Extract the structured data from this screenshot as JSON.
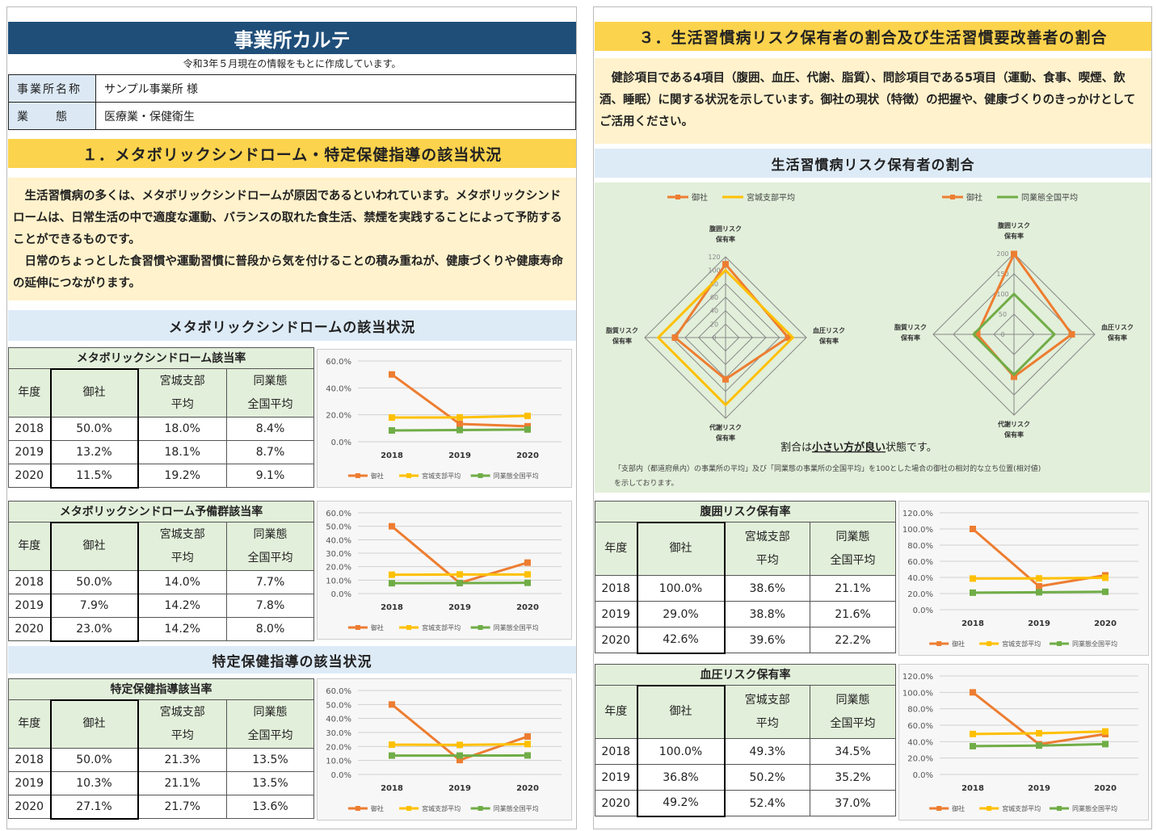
{
  "header": {
    "title": "事業所カルテ",
    "note": "令和3年５月現在の情報をもとに作成しています。",
    "rows": [
      {
        "key": "事業所名称",
        "value": "サンプル事業所 様"
      },
      {
        "key": "業　　態",
        "value": "医療業・保健衛生"
      }
    ]
  },
  "section1": {
    "title": "１．メタボリックシンドローム・特定保健指導の該当状況",
    "intro": "　生活習慣病の多くは、メタボリックシンドロームが原因であるといわれています。メタボリックシンドロームは、日常生活の中で適度な運動、バランスの取れた食生活、禁煙を実践することによって予防することができるものです。\n　日常のちょっとした食習慣や運動習慣に普段から気を付けることの積み重ねが、健康づくりや健康寿命の延伸につながります。",
    "sub1": "メタボリックシンドロームの該当状況",
    "sub2": "特定保健指導の該当状況"
  },
  "section3": {
    "title": "３．生活習慣病リスク保有者の割合及び生活習慣要改善者の割合",
    "intro": "　健診項目である4項目（腹囲、血圧、代謝、脂質）、問診項目である5項目（運動、食事、喫煙、飲酒、睡眠）に関する状況を示しています。御社の現状（特徴）の把握や、健康づくりのきっかけとしてご活用ください。",
    "sub1": "生活習慣病リスク保有者の割合",
    "radar_note_pre": "割合は",
    "radar_note_em": "小さい方が良い",
    "radar_note_post": "状態です。",
    "radar_footnote1": "「支部内（都道府県内）の事業所の平均」及び「同業態の事業所の全国平均」を100とした場合の御社の相対的な立ち位置(相対値)",
    "radar_footnote2": "を示しております。"
  },
  "table_labels": {
    "year": "年度",
    "ours": "御社",
    "branch1": "宮城支部",
    "branch2": "平均",
    "industry1": "同業態",
    "industry2": "全国平均"
  },
  "tables": [
    {
      "caption": "メタボリックシンドローム該当率",
      "rows": [
        [
          "2018",
          "50.0%",
          "18.0%",
          "8.4%"
        ],
        [
          "2019",
          "13.2%",
          "18.1%",
          "8.7%"
        ],
        [
          "2020",
          "11.5%",
          "19.2%",
          "9.1%"
        ]
      ]
    },
    {
      "caption": "メタボリックシンドローム予備群該当率",
      "rows": [
        [
          "2018",
          "50.0%",
          "14.0%",
          "7.7%"
        ],
        [
          "2019",
          "7.9%",
          "14.2%",
          "7.8%"
        ],
        [
          "2020",
          "23.0%",
          "14.2%",
          "8.0%"
        ]
      ]
    },
    {
      "caption": "特定保健指導該当率",
      "rows": [
        [
          "2018",
          "50.0%",
          "21.3%",
          "13.5%"
        ],
        [
          "2019",
          "10.3%",
          "21.1%",
          "13.5%"
        ],
        [
          "2020",
          "27.1%",
          "21.7%",
          "13.6%"
        ]
      ]
    },
    {
      "caption": "腹囲リスク保有率",
      "rows": [
        [
          "2018",
          "100.0%",
          "38.6%",
          "21.1%"
        ],
        [
          "2019",
          "29.0%",
          "38.8%",
          "21.6%"
        ],
        [
          "2020",
          "42.6%",
          "39.6%",
          "22.2%"
        ]
      ]
    },
    {
      "caption": "血圧リスク保有率",
      "rows": [
        [
          "2018",
          "100.0%",
          "49.3%",
          "34.5%"
        ],
        [
          "2019",
          "36.8%",
          "50.2%",
          "35.2%"
        ],
        [
          "2020",
          "49.2%",
          "52.4%",
          "37.0%"
        ]
      ]
    }
  ],
  "legend": {
    "ours": "御社",
    "branch": "宮城支部平均",
    "industry": "同業態全国平均"
  },
  "colors": {
    "ours": "#ed7d31",
    "branch": "#ffc000",
    "industry": "#70ad47",
    "navy": "#1f4e79"
  },
  "chart_data": [
    {
      "type": "line",
      "categories": [
        "2018",
        "2019",
        "2020"
      ],
      "ylim": [
        0,
        60
      ],
      "yticks": [
        "0.0%",
        "20.0%",
        "40.0%",
        "60.0%"
      ],
      "series": [
        {
          "name": "御社",
          "values": [
            50.0,
            13.2,
            11.5
          ]
        },
        {
          "name": "宮城支部平均",
          "values": [
            18.0,
            18.1,
            19.2
          ]
        },
        {
          "name": "同業態全国平均",
          "values": [
            8.4,
            8.7,
            9.1
          ]
        }
      ]
    },
    {
      "type": "line",
      "categories": [
        "2018",
        "2019",
        "2020"
      ],
      "ylim": [
        0,
        60
      ],
      "yticks": [
        "0.0%",
        "10.0%",
        "20.0%",
        "30.0%",
        "40.0%",
        "50.0%",
        "60.0%"
      ],
      "series": [
        {
          "name": "御社",
          "values": [
            50.0,
            7.9,
            23.0
          ]
        },
        {
          "name": "宮城支部平均",
          "values": [
            14.0,
            14.2,
            14.2
          ]
        },
        {
          "name": "同業態全国平均",
          "values": [
            7.7,
            7.8,
            8.0
          ]
        }
      ]
    },
    {
      "type": "line",
      "categories": [
        "2018",
        "2019",
        "2020"
      ],
      "ylim": [
        0,
        60
      ],
      "yticks": [
        "0.0%",
        "10.0%",
        "20.0%",
        "30.0%",
        "40.0%",
        "50.0%",
        "60.0%"
      ],
      "series": [
        {
          "name": "御社",
          "values": [
            50.0,
            10.3,
            27.1
          ]
        },
        {
          "name": "宮城支部平均",
          "values": [
            21.3,
            21.1,
            21.7
          ]
        },
        {
          "name": "同業態全国平均",
          "values": [
            13.5,
            13.5,
            13.6
          ]
        }
      ]
    },
    {
      "type": "line",
      "categories": [
        "2018",
        "2019",
        "2020"
      ],
      "ylim": [
        0,
        120
      ],
      "yticks": [
        "0.0%",
        "20.0%",
        "40.0%",
        "60.0%",
        "80.0%",
        "100.0%",
        "120.0%"
      ],
      "series": [
        {
          "name": "御社",
          "values": [
            100.0,
            29.0,
            42.6
          ]
        },
        {
          "name": "宮城支部平均",
          "values": [
            38.6,
            38.8,
            39.6
          ]
        },
        {
          "name": "同業態全国平均",
          "values": [
            21.1,
            21.6,
            22.2
          ]
        }
      ]
    },
    {
      "type": "line",
      "categories": [
        "2018",
        "2019",
        "2020"
      ],
      "ylim": [
        0,
        120
      ],
      "yticks": [
        "0.0%",
        "20.0%",
        "40.0%",
        "60.0%",
        "80.0%",
        "100.0%",
        "120.0%"
      ],
      "series": [
        {
          "name": "御社",
          "values": [
            100.0,
            36.8,
            49.2
          ]
        },
        {
          "name": "宮城支部平均",
          "values": [
            49.3,
            50.2,
            52.4
          ]
        },
        {
          "name": "同業態全国平均",
          "values": [
            34.5,
            35.2,
            37.0
          ]
        }
      ]
    },
    {
      "type": "radar",
      "axes": [
        "腹囲リスク\n保有率",
        "血圧リスク\n保有率",
        "代謝リスク\n保有率",
        "脂質リスク\n保有率"
      ],
      "rlim": [
        0,
        120
      ],
      "rticks": [
        "0",
        "20",
        "40",
        "60",
        "80",
        "100",
        "120"
      ],
      "series": [
        {
          "name": "御社",
          "values": [
            109,
            93,
            62,
            75
          ]
        },
        {
          "name": "宮城支部平均",
          "values": [
            100,
            100,
            100,
            100
          ]
        }
      ]
    },
    {
      "type": "radar",
      "axes": [
        "腹囲リスク\n保有率",
        "血圧リスク\n保有率",
        "代謝リスク\n保有率",
        "脂質リスク\n保有率"
      ],
      "rlim": [
        0,
        200
      ],
      "rticks": [
        "0",
        "50",
        "100",
        "150",
        "200"
      ],
      "series": [
        {
          "name": "御社",
          "values": [
            199,
            143,
            105,
            91
          ]
        },
        {
          "name": "同業態全国平均",
          "values": [
            100,
            100,
            100,
            100
          ]
        }
      ]
    }
  ]
}
